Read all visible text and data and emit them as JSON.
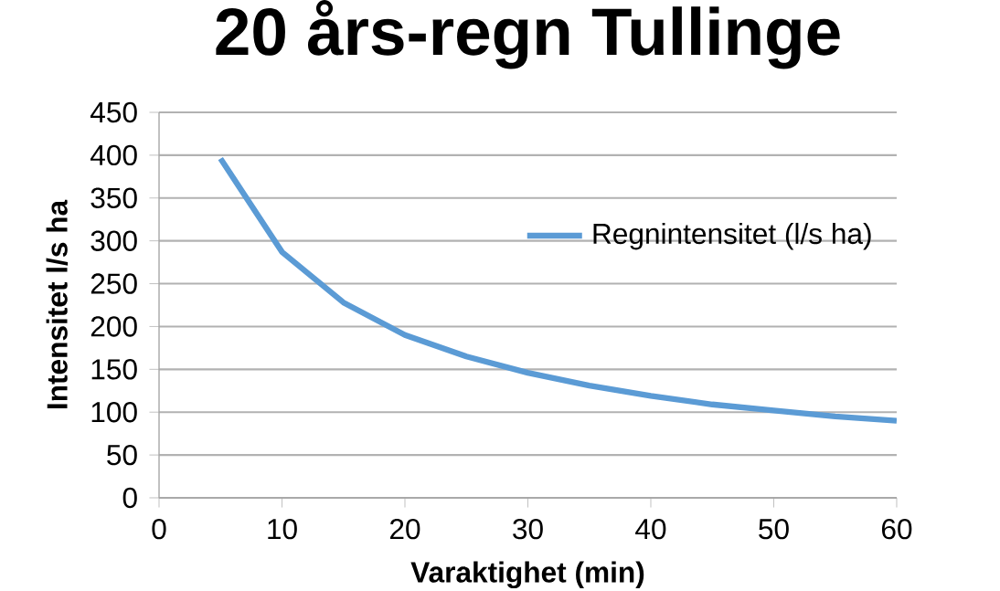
{
  "chart_data": {
    "type": "line",
    "title": "20 års-regn Tullinge",
    "xlabel": "Varaktighet (min)",
    "ylabel": "Intensitet l/s ha",
    "x": [
      5,
      10,
      15,
      20,
      25,
      30,
      35,
      40,
      45,
      50,
      55,
      60
    ],
    "series": [
      {
        "name": "Regnintensitet (l/s ha)",
        "color": "#5b9bd5",
        "values": [
          396,
          287,
          228,
          190,
          165,
          146,
          131,
          119,
          109,
          102,
          95,
          90
        ]
      }
    ],
    "xlim": [
      0,
      60
    ],
    "xticks": [
      0,
      10,
      20,
      30,
      40,
      50,
      60
    ],
    "ylim": [
      0,
      450
    ],
    "yticks": [
      0,
      50,
      100,
      150,
      200,
      250,
      300,
      350,
      400,
      450
    ],
    "grid": "y",
    "legend": "right",
    "marker": "none",
    "line_style": "solid"
  }
}
